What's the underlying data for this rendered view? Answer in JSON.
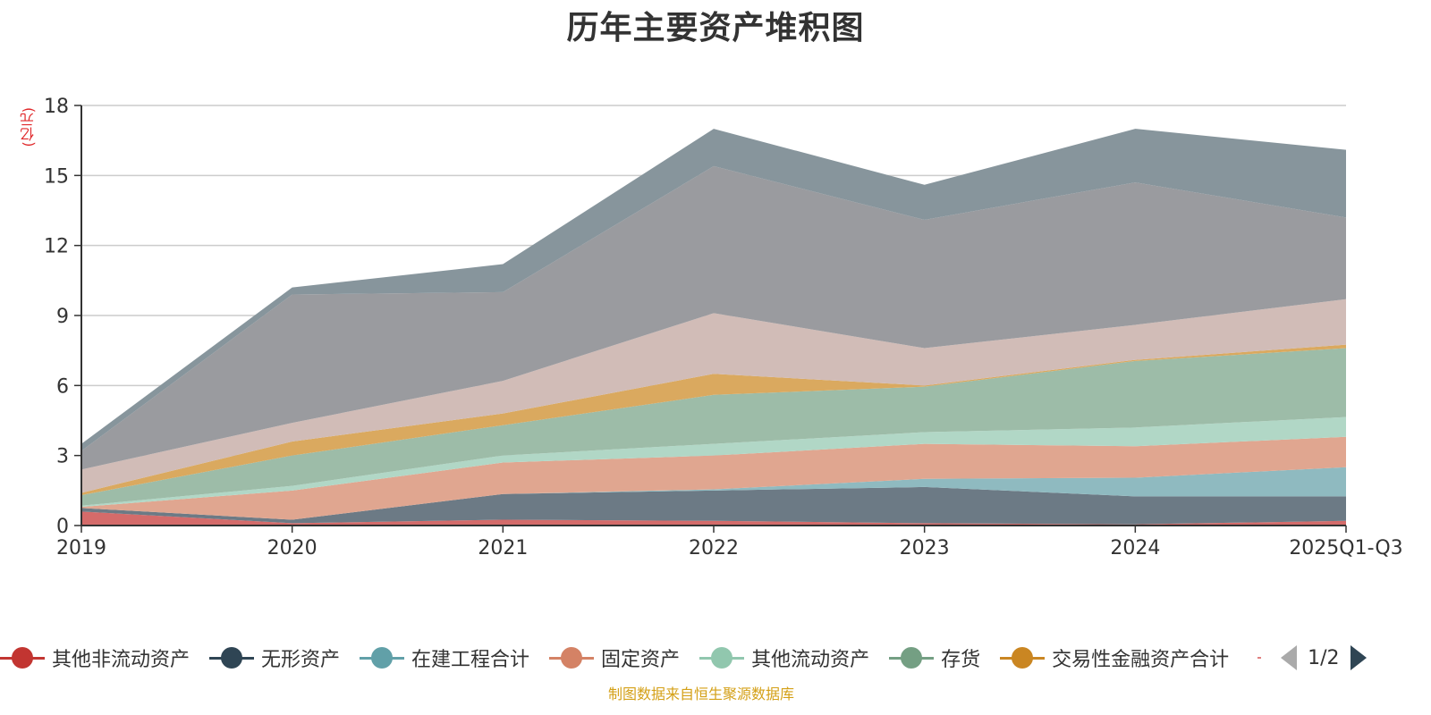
{
  "chart_data": {
    "type": "area",
    "stacked": true,
    "title": "历年主要资产堆积图",
    "ylabel": "(亿元)",
    "xlabel": "",
    "categories": [
      "2019",
      "2020",
      "2021",
      "2022",
      "2023",
      "2024",
      "2025Q1-Q3"
    ],
    "ylim": [
      0,
      18
    ],
    "yticks": [
      0,
      3,
      6,
      9,
      12,
      15,
      18
    ],
    "grid": true,
    "legend_position": "bottom",
    "series": [
      {
        "name": "其他非流动资产",
        "color": "#c23531",
        "fill": "#d46b6a",
        "values": [
          0.6,
          0.1,
          0.25,
          0.2,
          0.1,
          0.05,
          0.2
        ]
      },
      {
        "name": "无形资产",
        "color": "#2f4554",
        "fill": "#6c7a85",
        "values": [
          0.15,
          0.15,
          1.1,
          1.3,
          1.55,
          1.2,
          1.05
        ]
      },
      {
        "name": "在建工程合计",
        "color": "#61a0a8",
        "fill": "#8fbac0",
        "values": [
          0.0,
          0.0,
          0.0,
          0.05,
          0.35,
          0.8,
          1.25
        ]
      },
      {
        "name": "固定资产",
        "color": "#d48265",
        "fill": "#e0a690",
        "values": [
          0.05,
          1.25,
          1.35,
          1.45,
          1.5,
          1.35,
          1.3
        ]
      },
      {
        "name": "其他流动资产",
        "color": "#91c7ae",
        "fill": "#b1d7c6",
        "values": [
          0.05,
          0.2,
          0.3,
          0.5,
          0.5,
          0.8,
          0.85
        ]
      },
      {
        "name": "存货",
        "color": "#749f83",
        "fill": "#9dbca8",
        "values": [
          0.45,
          1.3,
          1.3,
          2.1,
          1.95,
          2.85,
          2.95
        ]
      },
      {
        "name": "交易性金融资产合计",
        "color": "#ca8622",
        "fill": "#daa95f",
        "values": [
          0.1,
          0.6,
          0.5,
          0.9,
          0.05,
          0.05,
          0.15
        ]
      },
      {
        "name": "",
        "color": "#bda29a",
        "fill": "#d1bcb7",
        "values": [
          1.0,
          0.8,
          1.4,
          2.6,
          1.6,
          1.5,
          1.95
        ]
      },
      {
        "name": "",
        "color": "#6e7074",
        "fill": "#9a9b9f",
        "values": [
          0.8,
          5.5,
          3.8,
          6.3,
          5.5,
          6.1,
          3.5
        ]
      },
      {
        "name": "",
        "color": "#546570",
        "fill": "#87959c",
        "values": [
          0.3,
          0.3,
          1.2,
          1.6,
          1.5,
          2.3,
          2.9
        ]
      }
    ]
  },
  "legend": {
    "page": "1/2"
  },
  "source": "制图数据来自恒生聚源数据库"
}
